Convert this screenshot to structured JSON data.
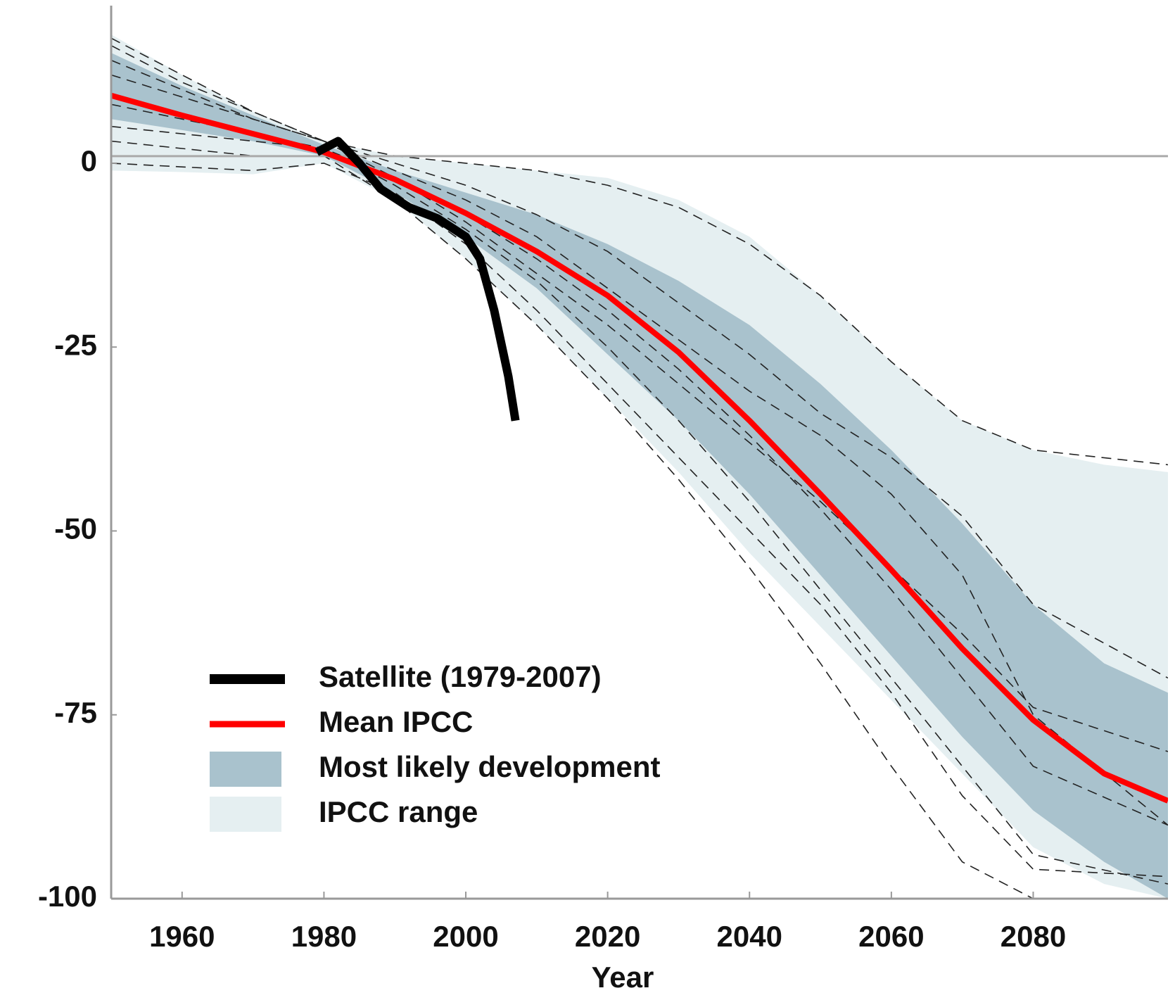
{
  "chart_data": {
    "type": "line",
    "x_label": "Year",
    "xlim": [
      1950,
      2099
    ],
    "ylim": [
      -100,
      22
    ],
    "xticks": [
      1960,
      1980,
      2000,
      2020,
      2040,
      2060,
      2080
    ],
    "yticks": [
      -100,
      -75,
      -50,
      -25,
      0
    ],
    "reference_line": 0,
    "series": [
      {
        "name": "Satellite (1979-2007)",
        "color": "#000000",
        "x": [
          1979,
          1982,
          1985,
          1988,
          1992,
          1996,
          2000,
          2002,
          2004,
          2006,
          2007
        ],
        "values": [
          1.5,
          3,
          0,
          -3.5,
          -6,
          -7.5,
          -10,
          -13,
          -20,
          -29,
          -35
        ]
      },
      {
        "name": "Mean IPCC",
        "color": "#ff0000",
        "x": [
          1950,
          1960,
          1970,
          1980,
          1990,
          2000,
          2010,
          2020,
          2030,
          2040,
          2050,
          2060,
          2070,
          2080,
          2090,
          2099
        ],
        "values": [
          9.2,
          6.5,
          4,
          1.5,
          -2.2,
          -6.8,
          -12,
          -18,
          -25.7,
          -35,
          -45,
          -55.3,
          -66,
          -75.7,
          -83,
          -86.7
        ]
      },
      {
        "name": "Most likely development",
        "color": "#a9c2cd",
        "x": [
          1950,
          1960,
          1970,
          1980,
          1990,
          2000,
          2010,
          2020,
          2030,
          2040,
          2050,
          2060,
          2070,
          2080,
          2090,
          2099
        ],
        "lower": [
          6,
          4.5,
          3,
          1,
          -4,
          -10,
          -17,
          -26,
          -35,
          -45,
          -56,
          -67,
          -78,
          -88,
          -95,
          -100
        ],
        "upper": [
          15,
          10.5,
          6.5,
          2.5,
          -1,
          -4,
          -7,
          -11,
          -16,
          -22,
          -30,
          -39,
          -49,
          -60,
          -68,
          -72
        ]
      },
      {
        "name": "IPCC range",
        "color": "#e5eff1",
        "x": [
          1950,
          1960,
          1970,
          1980,
          1990,
          2000,
          2010,
          2020,
          2030,
          2040,
          2050,
          2060,
          2070,
          2080,
          2090,
          2099
        ],
        "lower": [
          -1,
          -1.2,
          -1.5,
          0,
          -5,
          -13,
          -22,
          -32,
          -42,
          -53,
          -63,
          -73,
          -83,
          -93,
          -98,
          -100
        ],
        "upper": [
          17.5,
          12,
          7,
          3,
          1,
          0,
          -1,
          -2,
          -5,
          -10,
          -18,
          -27,
          -35,
          -39,
          -41,
          -42
        ]
      }
    ],
    "model_runs": {
      "color": "#222222",
      "x": [
        1950,
        1960,
        1970,
        1980,
        1990,
        2000,
        2010,
        2020,
        2030,
        2040,
        2050,
        2060,
        2070,
        2080,
        2099
      ],
      "runs": [
        [
          17,
          12,
          7,
          3,
          1,
          0,
          -1,
          -3,
          -6,
          -11,
          -18,
          -27,
          -35,
          -39,
          -41
        ],
        [
          16,
          11,
          7,
          3,
          0,
          -3,
          -7,
          -12,
          -19,
          -26,
          -34,
          -40,
          -48,
          -60,
          -70
        ],
        [
          12,
          9,
          6,
          3,
          -1,
          -5,
          -10,
          -17,
          -24,
          -31,
          -37,
          -45,
          -56,
          -75,
          -90
        ],
        [
          8,
          6,
          4,
          2,
          -2,
          -7,
          -13,
          -20,
          -28,
          -37,
          -47,
          -58,
          -70,
          -82,
          -90
        ],
        [
          5,
          4,
          3,
          2,
          -3,
          -9,
          -16,
          -25,
          -35,
          -46,
          -58,
          -70,
          -82,
          -94,
          -98
        ],
        [
          0,
          -0.5,
          -1,
          0,
          -4,
          -11,
          -20,
          -30,
          -40,
          -50,
          -60,
          -72,
          -86,
          -96,
          -97
        ],
        [
          3,
          2,
          1,
          1,
          -5,
          -13,
          -22,
          -32,
          -43,
          -55,
          -68,
          -82,
          -95,
          -100,
          -100
        ],
        [
          14,
          10,
          6,
          3,
          -2,
          -8,
          -15,
          -22,
          -30,
          -38,
          -46,
          -55,
          -64,
          -74,
          -80
        ]
      ]
    }
  }
}
